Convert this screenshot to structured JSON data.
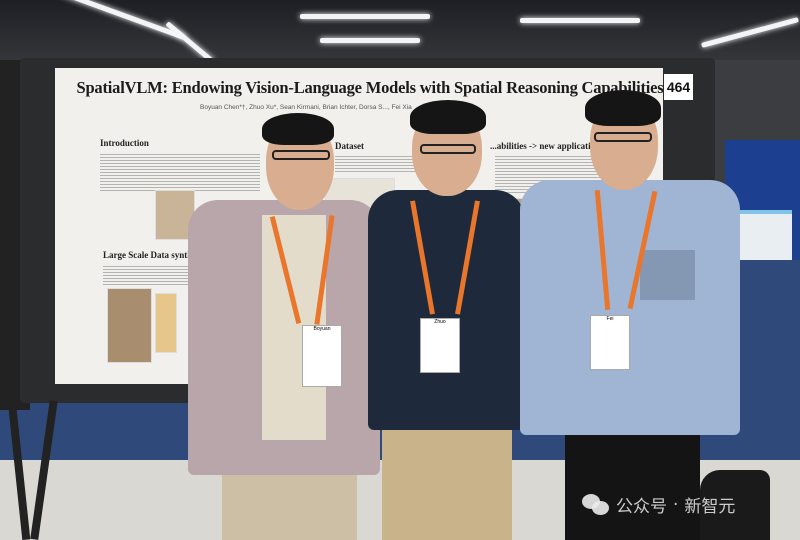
{
  "poster": {
    "title": "SpatialVLM: Endowing Vision-Language Models with Spatial Reasoning Capabilities",
    "authors": "Boyuan Chen*†, Zhuo Xu*, Sean Kirmani, Brian Ichter, Dorsa S..., Fei Xia",
    "sections": [
      "Introduction",
      "Dataset",
      "...abilities -> new applications",
      "Large Scale Data synthesis"
    ],
    "board_number": "464"
  },
  "badges": [
    "Boyuan",
    "Zhuo",
    "Fei"
  ],
  "watermark": {
    "source": "公众号",
    "separator": "·",
    "account": "新智元",
    "icon": "wechat-icon"
  },
  "colors": {
    "lanyard": "#e9762b",
    "carpet": "#2f4a7a",
    "poster": "#f1f0ec"
  }
}
